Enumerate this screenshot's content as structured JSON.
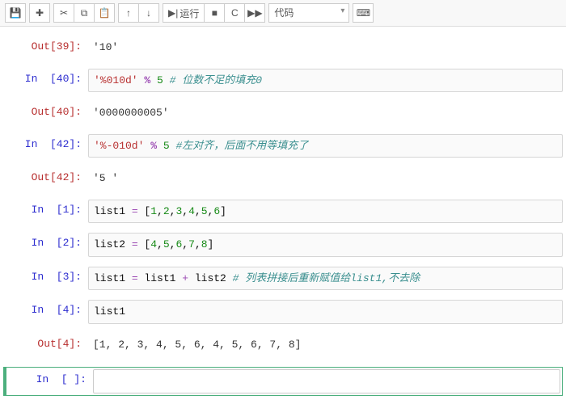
{
  "toolbar": {
    "save_icon": "💾",
    "add_icon": "✚",
    "cut_icon": "✂",
    "copy_icon": "⧉",
    "paste_icon": "📋",
    "up_icon": "↑",
    "down_icon": "↓",
    "run_play": "▶|",
    "run_label": "运行",
    "stop_icon": "■",
    "restart_icon": "C",
    "ff_icon": "▶▶",
    "celltype_value": "代码",
    "keyboard_icon": "⌨"
  },
  "cells": [
    {
      "kind": "out",
      "n": "39",
      "plain": "'10'"
    },
    {
      "kind": "in",
      "n": "40",
      "tokens": [
        {
          "t": "'%010d'",
          "c": "str"
        },
        {
          "t": " ",
          "c": ""
        },
        {
          "t": "%",
          "c": "op"
        },
        {
          "t": " ",
          "c": ""
        },
        {
          "t": "5",
          "c": "num"
        },
        {
          "t": " ",
          "c": ""
        },
        {
          "t": "# 位数不足的填充0",
          "c": "cmt"
        }
      ]
    },
    {
      "kind": "out",
      "n": "40",
      "plain": "'0000000005'"
    },
    {
      "kind": "in",
      "n": "42",
      "tokens": [
        {
          "t": "'%-010d'",
          "c": "str"
        },
        {
          "t": " ",
          "c": ""
        },
        {
          "t": "%",
          "c": "op"
        },
        {
          "t": " ",
          "c": ""
        },
        {
          "t": "5",
          "c": "num"
        },
        {
          "t": " ",
          "c": ""
        },
        {
          "t": "#左对齐，后面不用等填充了",
          "c": "cmt"
        }
      ]
    },
    {
      "kind": "out",
      "n": "42",
      "plain": "'5          '"
    },
    {
      "kind": "in",
      "n": "1",
      "tokens": [
        {
          "t": "list1 ",
          "c": "var"
        },
        {
          "t": "=",
          "c": "opk"
        },
        {
          "t": " [",
          "c": "var"
        },
        {
          "t": "1",
          "c": "num"
        },
        {
          "t": ",",
          "c": "var"
        },
        {
          "t": "2",
          "c": "num"
        },
        {
          "t": ",",
          "c": "var"
        },
        {
          "t": "3",
          "c": "num"
        },
        {
          "t": ",",
          "c": "var"
        },
        {
          "t": "4",
          "c": "num"
        },
        {
          "t": ",",
          "c": "var"
        },
        {
          "t": "5",
          "c": "num"
        },
        {
          "t": ",",
          "c": "var"
        },
        {
          "t": "6",
          "c": "num"
        },
        {
          "t": "]",
          "c": "var"
        }
      ]
    },
    {
      "kind": "in",
      "n": "2",
      "tokens": [
        {
          "t": "list2 ",
          "c": "var"
        },
        {
          "t": "=",
          "c": "opk"
        },
        {
          "t": " [",
          "c": "var"
        },
        {
          "t": "4",
          "c": "num"
        },
        {
          "t": ",",
          "c": "var"
        },
        {
          "t": "5",
          "c": "num"
        },
        {
          "t": ",",
          "c": "var"
        },
        {
          "t": "6",
          "c": "num"
        },
        {
          "t": ",",
          "c": "var"
        },
        {
          "t": "7",
          "c": "num"
        },
        {
          "t": ",",
          "c": "var"
        },
        {
          "t": "8",
          "c": "num"
        },
        {
          "t": "]",
          "c": "var"
        }
      ]
    },
    {
      "kind": "in",
      "n": "3",
      "tokens": [
        {
          "t": "list1 ",
          "c": "var"
        },
        {
          "t": "=",
          "c": "opk"
        },
        {
          "t": " list1 ",
          "c": "var"
        },
        {
          "t": "+",
          "c": "opk"
        },
        {
          "t": " list2   ",
          "c": "var"
        },
        {
          "t": "# 列表拼接后重新赋值给list1,不去除",
          "c": "cmt"
        }
      ]
    },
    {
      "kind": "in",
      "n": "4",
      "tokens": [
        {
          "t": "list1",
          "c": "var"
        }
      ]
    },
    {
      "kind": "out",
      "n": "4",
      "plain": "[1, 2, 3, 4, 5, 6, 4, 5, 6, 7, 8]"
    },
    {
      "kind": "in",
      "n": " ",
      "active": true,
      "tokens": []
    }
  ]
}
